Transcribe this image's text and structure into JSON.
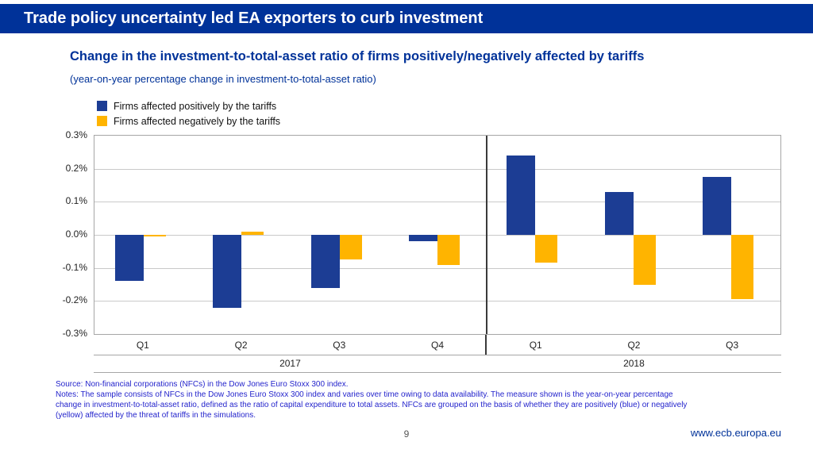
{
  "banner": {
    "title": "Trade policy uncertainty led EA exporters to curb investment"
  },
  "chart": {
    "title": "Change in the investment-to-total-asset ratio of firms positively/negatively affected by tariffs",
    "subtitle": "(year-on-year percentage change in investment-to-total-asset ratio)"
  },
  "chart_data": {
    "type": "bar",
    "categories": [
      "Q1",
      "Q2",
      "Q3",
      "Q4",
      "Q1",
      "Q2",
      "Q3"
    ],
    "year_groups": [
      {
        "label": "2017",
        "span": 4
      },
      {
        "label": "2018",
        "span": 3
      }
    ],
    "series": [
      {
        "name": "Firms affected positively by the tariffs",
        "color": "#1c3d94",
        "values": [
          -0.14,
          -0.22,
          -0.16,
          -0.02,
          0.24,
          0.13,
          0.175
        ]
      },
      {
        "name": "Firms affected negatively by the tariffs",
        "color": "#ffb400",
        "values": [
          -0.005,
          0.01,
          -0.075,
          -0.09,
          -0.085,
          -0.15,
          -0.195
        ]
      }
    ],
    "ylim": [
      -0.3,
      0.3
    ],
    "ytick_step": 0.1,
    "ytick_labels": [
      "0.3%",
      "0.2%",
      "0.1%",
      "0.0%",
      "-0.1%",
      "-0.2%",
      "-0.3%"
    ],
    "grid": true,
    "legend_position": "top-left",
    "divider_after_category": 4
  },
  "colors": {
    "banner_bg": "#003299",
    "title_text": "#003299",
    "positive_bar": "#1c3d94",
    "negative_bar": "#ffb400",
    "notes_text": "#2424cc",
    "link_text": "#003299"
  },
  "notes": {
    "source": "Source: Non-financial corporations (NFCs) in the Dow Jones Euro Stoxx 300 index.",
    "notes": "Notes: The sample consists of NFCs in the Dow Jones Euro Stoxx 300 index and varies over time owing to data availability. The measure shown is the year-on-year percentage change in investment-to-total-asset ratio, defined as the ratio of capital expenditure to total assets. NFCs are grouped on the basis of whether they are positively (blue) or negatively (yellow) affected by the threat of tariffs in the simulations."
  },
  "footer": {
    "page_number": "9",
    "website": "www.ecb.europa.eu"
  }
}
